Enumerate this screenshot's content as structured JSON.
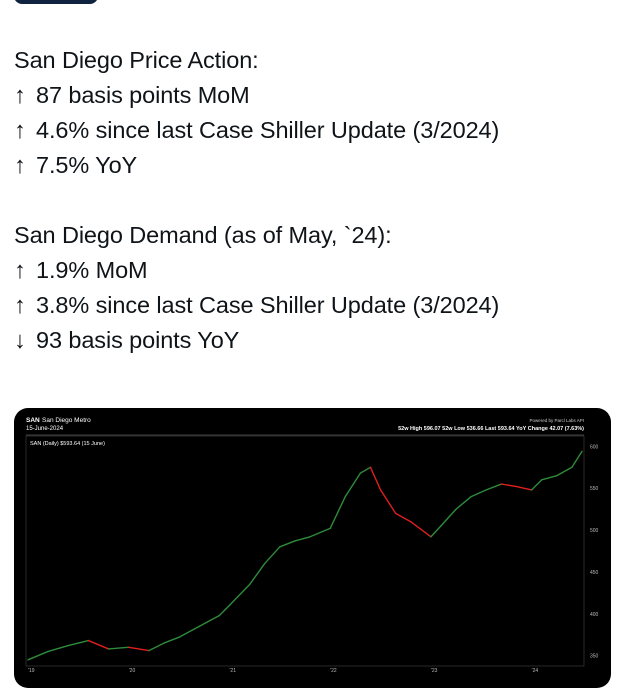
{
  "post": {
    "price_title": "San Diego Price Action:",
    "price_lines": [
      {
        "arrow": "↑",
        "text": "87 basis points MoM"
      },
      {
        "arrow": "↑",
        "text": "4.6% since last Case Shiller Update (3/2024)"
      },
      {
        "arrow": "↑",
        "text": "7.5% YoY"
      }
    ],
    "demand_title": "San Diego Demand (as of May, `24):",
    "demand_lines": [
      {
        "arrow": "↑",
        "text": "1.9% MoM"
      },
      {
        "arrow": "↑",
        "text": "3.8% since last Case Shiller Update (3/2024)"
      },
      {
        "arrow": "↓",
        "text": "93 basis points YoY"
      }
    ]
  },
  "chart_header": {
    "ticker": "SAN",
    "name": "San Diego Metro",
    "date": "15-June-2024",
    "stats_left": "52w High 596.07  52w Low 536.66  Last 593.64  YoY Change 42.07 (7.63%)",
    "powered_by": "Powered by Parcl Labs API",
    "series_label": "SAN (Daily) $593.64 (15 June)"
  },
  "chart_data": {
    "type": "line",
    "x_tick_labels": [
      "'19",
      "'20",
      "'21",
      "'22",
      "'23",
      "'24"
    ],
    "y_tick_labels": [
      "350",
      "400",
      "450",
      "500",
      "550",
      "600"
    ],
    "ylim": [
      340,
      610
    ],
    "x": [
      2019.0,
      2019.2,
      2019.4,
      2019.6,
      2019.8,
      2020.0,
      2020.2,
      2020.35,
      2020.5,
      2020.7,
      2020.9,
      2021.0,
      2021.2,
      2021.35,
      2021.5,
      2021.65,
      2021.8,
      2022.0,
      2022.15,
      2022.3,
      2022.4,
      2022.5,
      2022.65,
      2022.8,
      2023.0,
      2023.1,
      2023.25,
      2023.4,
      2023.55,
      2023.7,
      2023.85,
      2024.0,
      2024.1,
      2024.25,
      2024.4,
      2024.5
    ],
    "values": [
      345,
      355,
      362,
      368,
      358,
      360,
      356,
      365,
      372,
      385,
      398,
      410,
      435,
      460,
      480,
      487,
      492,
      502,
      540,
      568,
      575,
      548,
      520,
      510,
      492,
      505,
      525,
      540,
      548,
      555,
      552,
      548,
      560,
      565,
      575,
      594
    ],
    "line_color_up": "#2e8b3a",
    "line_color_down": "#e01e1e",
    "grid": false,
    "background": "#000000"
  }
}
